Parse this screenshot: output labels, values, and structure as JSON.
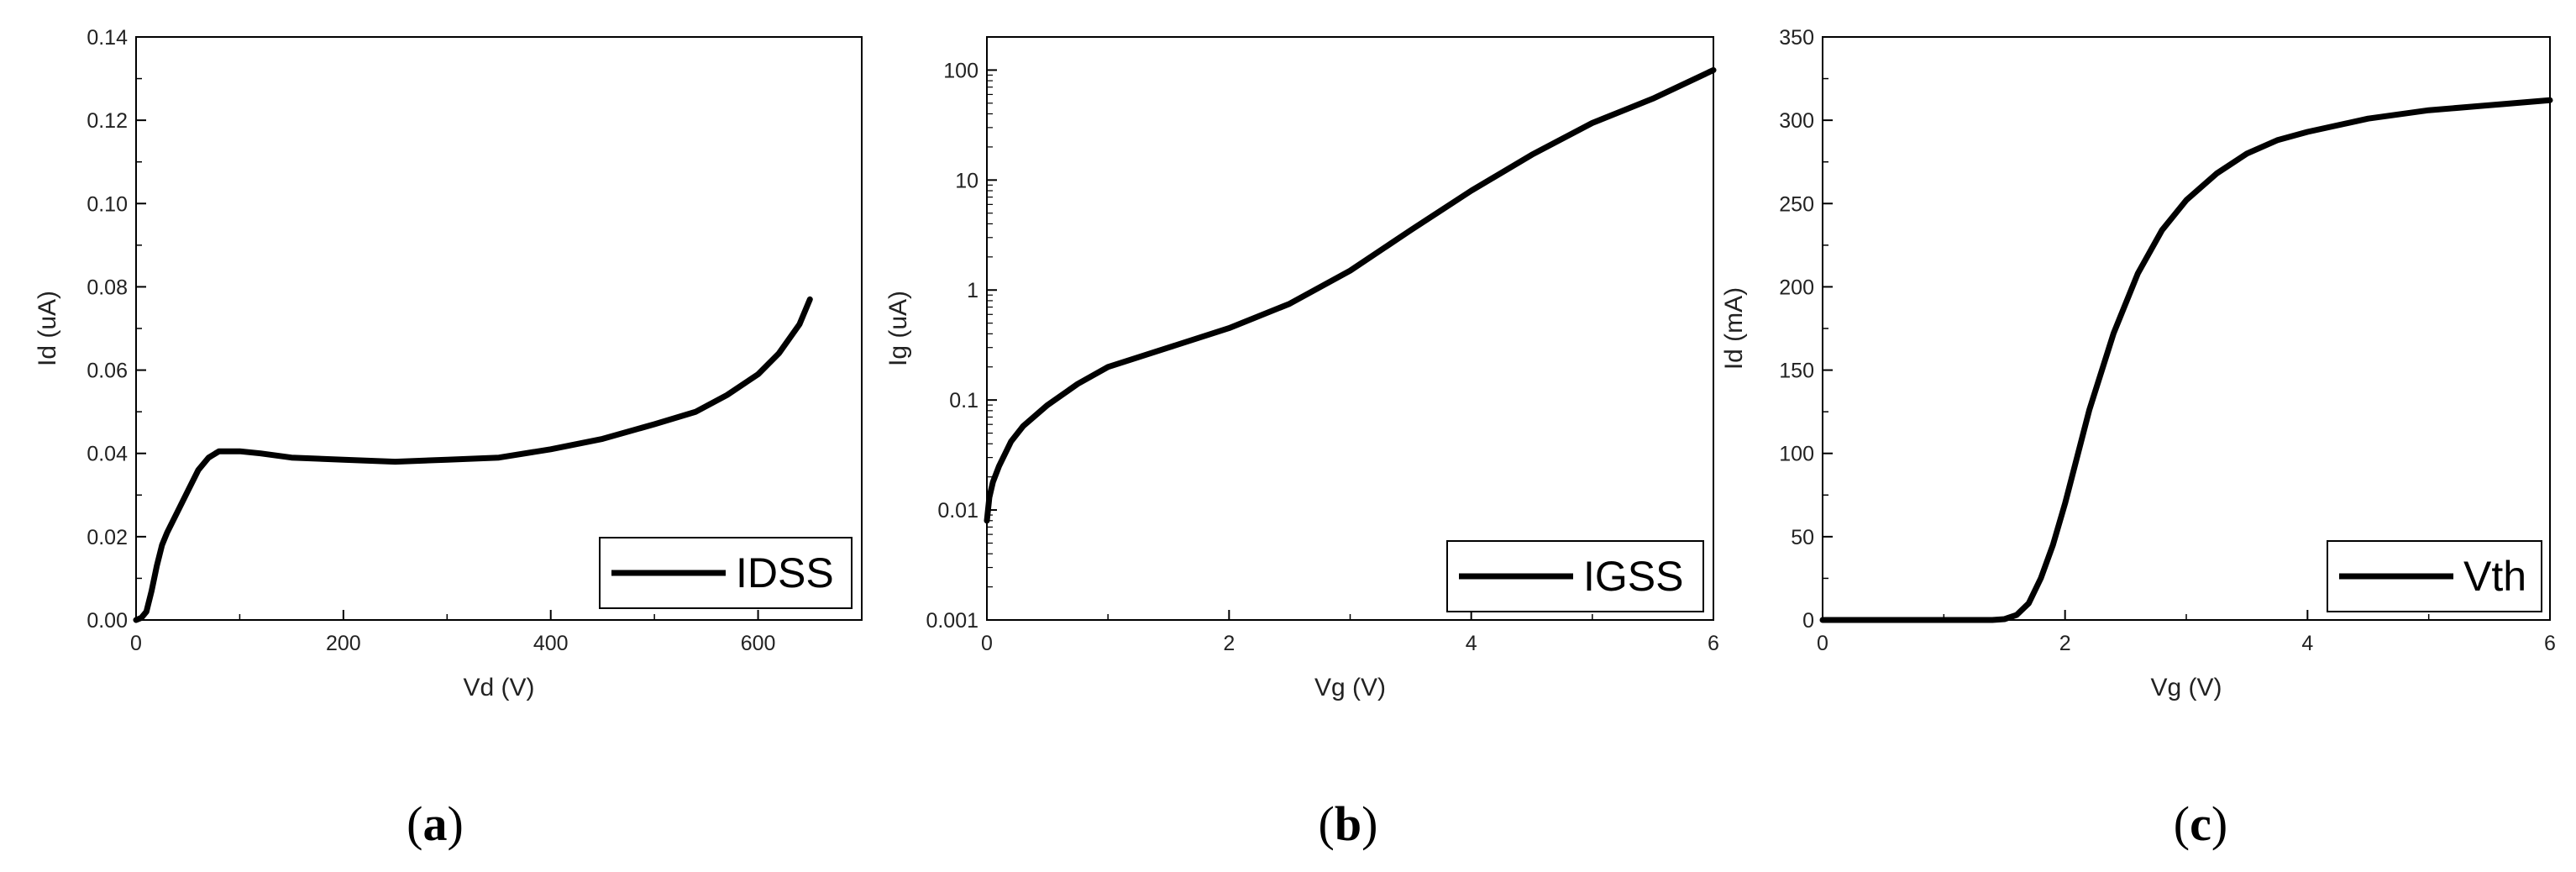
{
  "chart_data": [
    {
      "type": "line",
      "panel_label": "a",
      "xlabel": "Vd (V)",
      "ylabel": "Id (uA)",
      "xlim": [
        0,
        700
      ],
      "ylim": [
        0,
        0.14
      ],
      "y_scale": "linear",
      "xticks": [
        0,
        200,
        400,
        600
      ],
      "yticks": [
        0.0,
        0.02,
        0.04,
        0.06,
        0.08,
        0.1,
        0.12,
        0.14
      ],
      "ytick_labels": [
        "0.00",
        "0.02",
        "0.04",
        "0.06",
        "0.08",
        "0.10",
        "0.12",
        "0.14"
      ],
      "xtick_labels": [
        "0",
        "200",
        "400",
        "600"
      ],
      "legend_placement": "bottom-right",
      "series": [
        {
          "name": "IDSS",
          "x": [
            0,
            5,
            10,
            15,
            20,
            25,
            30,
            40,
            50,
            60,
            70,
            80,
            100,
            120,
            150,
            200,
            250,
            300,
            350,
            400,
            450,
            500,
            540,
            570,
            600,
            620,
            640,
            650
          ],
          "y": [
            0,
            0.0005,
            0.002,
            0.007,
            0.013,
            0.018,
            0.021,
            0.026,
            0.031,
            0.036,
            0.039,
            0.0405,
            0.0405,
            0.04,
            0.039,
            0.0385,
            0.038,
            0.0385,
            0.039,
            0.041,
            0.0435,
            0.047,
            0.05,
            0.054,
            0.059,
            0.064,
            0.071,
            0.077
          ]
        }
      ]
    },
    {
      "type": "line",
      "panel_label": "b",
      "xlabel": "Vg (V)",
      "ylabel": "Ig (uA)",
      "xlim": [
        0,
        6
      ],
      "ylim": [
        0.001,
        200
      ],
      "y_scale": "log",
      "xticks": [
        0,
        2,
        4,
        6
      ],
      "xtick_labels": [
        "0",
        "2",
        "4",
        "6"
      ],
      "yticks": [
        0.001,
        0.01,
        0.1,
        1,
        10,
        100
      ],
      "ytick_labels": [
        "0.001",
        "0.01",
        "0.1",
        "1",
        "10",
        "100"
      ],
      "legend_placement": "bottom-right",
      "series": [
        {
          "name": "IGSS",
          "x": [
            0,
            0.02,
            0.05,
            0.1,
            0.2,
            0.3,
            0.5,
            0.75,
            1.0,
            1.5,
            2.0,
            2.5,
            3.0,
            3.5,
            4.0,
            4.5,
            5.0,
            5.5,
            6.0
          ],
          "y": [
            0.008,
            0.013,
            0.018,
            0.025,
            0.042,
            0.058,
            0.09,
            0.14,
            0.2,
            0.3,
            0.45,
            0.75,
            1.5,
            3.5,
            8,
            17,
            33,
            55,
            100
          ]
        }
      ]
    },
    {
      "type": "line",
      "panel_label": "c",
      "xlabel": "Vg (V)",
      "ylabel": "Id (mA)",
      "xlim": [
        0,
        6
      ],
      "ylim": [
        0,
        350
      ],
      "y_scale": "linear",
      "xticks": [
        0,
        2,
        4,
        6
      ],
      "xtick_labels": [
        "0",
        "2",
        "4",
        "6"
      ],
      "yticks": [
        0,
        50,
        100,
        150,
        200,
        250,
        300,
        350
      ],
      "ytick_labels": [
        "0",
        "50",
        "100",
        "150",
        "200",
        "250",
        "300",
        "350"
      ],
      "legend_placement": "bottom-right",
      "series": [
        {
          "name": "Vth",
          "x": [
            0,
            0.5,
            1.0,
            1.4,
            1.5,
            1.6,
            1.7,
            1.8,
            1.9,
            2.0,
            2.1,
            2.2,
            2.4,
            2.6,
            2.8,
            3.0,
            3.25,
            3.5,
            3.75,
            4.0,
            4.5,
            5.0,
            5.5,
            6.0
          ],
          "y": [
            0,
            0,
            0,
            0,
            0.5,
            3,
            10,
            25,
            45,
            70,
            98,
            126,
            172,
            208,
            234,
            252,
            268,
            280,
            288,
            293,
            301,
            306,
            309,
            312
          ]
        }
      ]
    }
  ]
}
